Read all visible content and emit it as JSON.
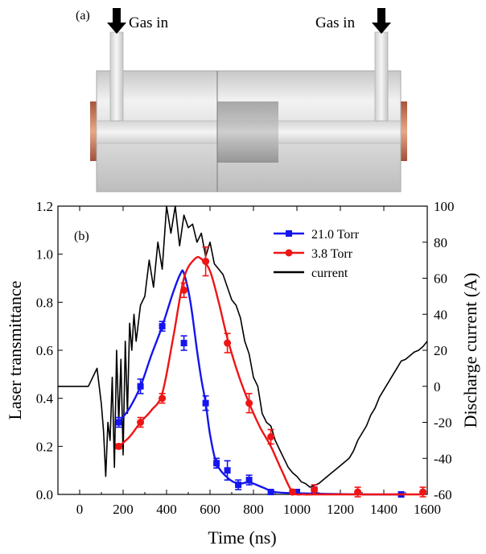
{
  "panel_a": {
    "label": "(a)",
    "gas_in_left": "Gas in",
    "gas_in_right": "Gas in"
  },
  "chart_data": {
    "type": "line",
    "panel_label": "(b)",
    "title": "",
    "xlabel": "Time (ns)",
    "ylabel": "Laser transmittance",
    "y2label": "Discharge current (A)",
    "xlim": [
      -100,
      1600
    ],
    "ylim": [
      0,
      1.2
    ],
    "y2lim": [
      -60,
      100
    ],
    "xticks": [
      0,
      200,
      400,
      600,
      800,
      1000,
      1200,
      1400,
      1600
    ],
    "yticks": [
      0.0,
      0.2,
      0.4,
      0.6,
      0.8,
      1.0,
      1.2
    ],
    "yticklabels": [
      "0.0",
      "0.2",
      "0.4",
      "0.6",
      "0.8",
      "1.0",
      "1.2"
    ],
    "y2ticks": [
      -60,
      -40,
      -20,
      0,
      20,
      40,
      60,
      80,
      100
    ],
    "grid": false,
    "legend_position": "top-right",
    "colors": {
      "s21": "#1515ee",
      "s38": "#ee1515",
      "current": "#000000"
    },
    "series": [
      {
        "name": "21.0 Torr",
        "axis": "left",
        "marker": "square",
        "x": [
          180,
          280,
          380,
          480,
          580,
          630,
          680,
          730,
          780,
          880,
          1000,
          1080,
          1480
        ],
        "y": [
          0.3,
          0.45,
          0.7,
          0.63,
          0.38,
          0.13,
          0.1,
          0.04,
          0.06,
          0.01,
          0.01,
          0.02,
          0.0
        ],
        "err": [
          0.02,
          0.03,
          0.02,
          0.03,
          0.03,
          0.02,
          0.04,
          0.02,
          0.02,
          0.0,
          0.0,
          0.0,
          0.0
        ],
        "fit_x": [
          180,
          230,
          280,
          330,
          380,
          430,
          465,
          480,
          510,
          540,
          560,
          580,
          600,
          630,
          680,
          730,
          780,
          840,
          900,
          1000,
          1100,
          1300,
          1480
        ],
        "fit_y": [
          0.3,
          0.36,
          0.45,
          0.58,
          0.7,
          0.84,
          0.92,
          0.92,
          0.8,
          0.6,
          0.48,
          0.38,
          0.25,
          0.13,
          0.07,
          0.045,
          0.05,
          0.03,
          0.01,
          0.005,
          0.003,
          0.0,
          0.0
        ]
      },
      {
        "name": "3.8 Torr",
        "axis": "left",
        "marker": "circle",
        "x": [
          180,
          280,
          380,
          480,
          580,
          680,
          780,
          880,
          980,
          1080,
          1280,
          1580
        ],
        "y": [
          0.2,
          0.3,
          0.4,
          0.85,
          0.97,
          0.63,
          0.38,
          0.24,
          0.01,
          0.02,
          0.01,
          0.01
        ],
        "err": [
          0.01,
          0.02,
          0.02,
          0.03,
          0.06,
          0.04,
          0.04,
          0.03,
          0.01,
          0.02,
          0.02,
          0.02
        ],
        "fit_x": [
          180,
          230,
          280,
          330,
          380,
          430,
          480,
          530,
          560,
          600,
          640,
          680,
          730,
          780,
          830,
          880,
          930,
          980,
          1030,
          1080,
          1180,
          1280,
          1580
        ],
        "fit_y": [
          0.2,
          0.24,
          0.3,
          0.35,
          0.42,
          0.65,
          0.9,
          0.98,
          0.98,
          0.93,
          0.8,
          0.65,
          0.5,
          0.38,
          0.28,
          0.2,
          0.1,
          0.01,
          0.0,
          0.0,
          0.0,
          0.0,
          0.0
        ]
      },
      {
        "name": "current",
        "axis": "right",
        "marker": "none",
        "x": [
          -100,
          40,
          80,
          100,
          110,
          120,
          130,
          140,
          150,
          160,
          170,
          180,
          190,
          200,
          210,
          220,
          230,
          240,
          250,
          260,
          280,
          300,
          320,
          340,
          360,
          380,
          400,
          420,
          440,
          460,
          480,
          500,
          520,
          540,
          560,
          580,
          600,
          620,
          640,
          660,
          680,
          700,
          720,
          740,
          760,
          780,
          800,
          820,
          840,
          860,
          880,
          900,
          920,
          940,
          960,
          980,
          1000,
          1020,
          1040,
          1060,
          1080,
          1100,
          1120,
          1140,
          1160,
          1180,
          1200,
          1220,
          1240,
          1260,
          1280,
          1300,
          1320,
          1340,
          1360,
          1380,
          1400,
          1420,
          1440,
          1460,
          1480,
          1500,
          1520,
          1540,
          1560,
          1580,
          1600
        ],
        "y": [
          0,
          0,
          10,
          -10,
          -25,
          -50,
          -20,
          -30,
          5,
          -45,
          20,
          -20,
          15,
          -38,
          25,
          -15,
          35,
          20,
          40,
          25,
          45,
          50,
          70,
          55,
          80,
          65,
          100,
          85,
          100,
          78,
          95,
          88,
          90,
          80,
          85,
          72,
          80,
          68,
          65,
          62,
          55,
          48,
          45,
          38,
          25,
          18,
          5,
          0,
          -15,
          -20,
          -22,
          -30,
          -35,
          -40,
          -45,
          -48,
          -50,
          -53,
          -54,
          -56,
          -55,
          -54,
          -52,
          -50,
          -48,
          -46,
          -44,
          -42,
          -40,
          -36,
          -30,
          -26,
          -22,
          -16,
          -12,
          -6,
          -2,
          2,
          6,
          10,
          14,
          15,
          17,
          19,
          20,
          22,
          25
        ]
      }
    ]
  }
}
